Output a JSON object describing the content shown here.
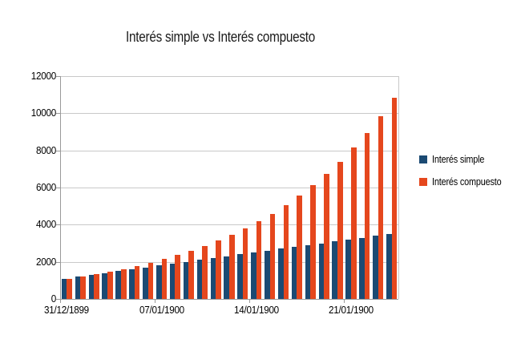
{
  "title": "Interés simple vs Interés compuesto",
  "chart_data": {
    "type": "bar",
    "title": "Interés simple vs Interés compuesto",
    "ylim": [
      0,
      12000
    ],
    "y_ticks": [
      0,
      2000,
      4000,
      6000,
      8000,
      10000,
      12000
    ],
    "grid": true,
    "legend_position": "right",
    "n_categories": 25,
    "x_tick_labels": [
      "31/12/1899",
      "07/01/1900",
      "14/01/1900",
      "21/01/1900"
    ],
    "x_tick_category_indices": [
      0,
      7,
      14,
      21
    ],
    "series": [
      {
        "name": "Interés simple",
        "color": "#1B4A73",
        "values": [
          1100,
          1200,
          1300,
          1400,
          1500,
          1600,
          1700,
          1800,
          1900,
          2000,
          2100,
          2200,
          2300,
          2400,
          2500,
          2600,
          2700,
          2800,
          2900,
          3000,
          3100,
          3200,
          3300,
          3400,
          3500
        ]
      },
      {
        "name": "Interés compuesto",
        "color": "#E5471D",
        "values": [
          1100,
          1210,
          1331,
          1464,
          1611,
          1772,
          1949,
          2144,
          2358,
          2594,
          2853,
          3138,
          3452,
          3797,
          4177,
          4595,
          5054,
          5560,
          6116,
          6727,
          7400,
          8140,
          8954,
          9850,
          10835
        ]
      }
    ],
    "colors": {
      "grid": "#C9C9C9",
      "axis": "#9A9A9A",
      "wall_border": "#C9C9C9",
      "text": "#000000"
    }
  }
}
